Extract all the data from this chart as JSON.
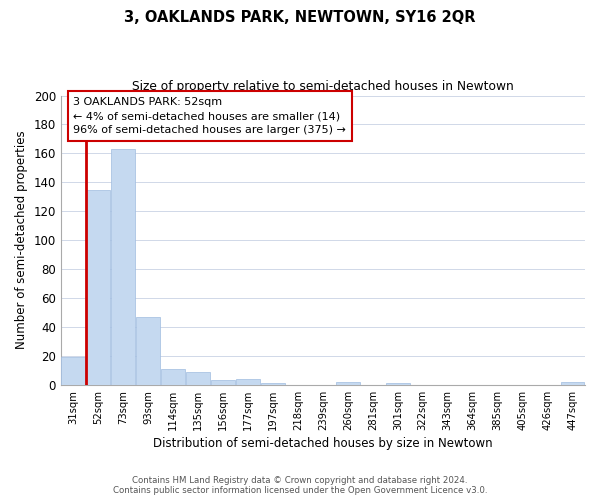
{
  "title": "3, OAKLANDS PARK, NEWTOWN, SY16 2QR",
  "subtitle": "Size of property relative to semi-detached houses in Newtown",
  "xlabel": "Distribution of semi-detached houses by size in Newtown",
  "ylabel": "Number of semi-detached properties",
  "bar_labels": [
    "31sqm",
    "52sqm",
    "73sqm",
    "93sqm",
    "114sqm",
    "135sqm",
    "156sqm",
    "177sqm",
    "197sqm",
    "218sqm",
    "239sqm",
    "260sqm",
    "281sqm",
    "301sqm",
    "322sqm",
    "343sqm",
    "364sqm",
    "385sqm",
    "405sqm",
    "426sqm",
    "447sqm"
  ],
  "bar_values": [
    19,
    135,
    163,
    47,
    11,
    9,
    3,
    4,
    1,
    0,
    0,
    2,
    0,
    1,
    0,
    0,
    0,
    0,
    0,
    0,
    2
  ],
  "bar_color": "#c5d9f0",
  "bar_edge_color": "#a0bce0",
  "highlight_bar_index": 1,
  "highlight_line_color": "#cc0000",
  "ylim": [
    0,
    200
  ],
  "yticks": [
    0,
    20,
    40,
    60,
    80,
    100,
    120,
    140,
    160,
    180,
    200
  ],
  "annotation_title": "3 OAKLANDS PARK: 52sqm",
  "annotation_line1": "← 4% of semi-detached houses are smaller (14)",
  "annotation_line2": "96% of semi-detached houses are larger (375) →",
  "annotation_box_color": "#ffffff",
  "annotation_box_edge": "#cc0000",
  "footnote1": "Contains HM Land Registry data © Crown copyright and database right 2024.",
  "footnote2": "Contains public sector information licensed under the Open Government Licence v3.0.",
  "background_color": "#ffffff",
  "grid_color": "#d0d8e8"
}
